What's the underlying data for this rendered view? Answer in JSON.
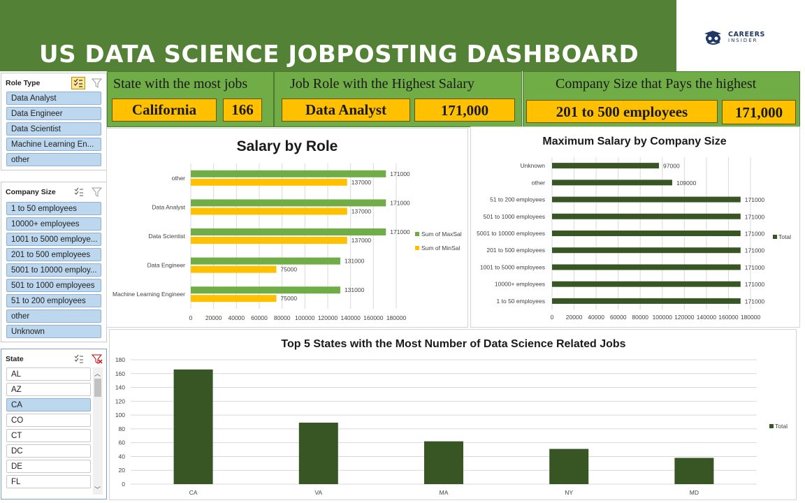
{
  "header": {
    "title": "US DATA SCIENCE JOBPOSTING DASHBOARD",
    "logo_line1": "CAREERS",
    "logo_line2": "INSIDER"
  },
  "colors": {
    "header_green": "#538135",
    "kpi_green": "#70ad47",
    "kpi_gold": "#ffc000",
    "bar_dark": "#375623",
    "bar_light": "#70ad47",
    "slicer_selected": "#bdd7ee"
  },
  "slicers": {
    "role": {
      "title": "Role Type",
      "items": [
        "Data Analyst",
        "Data Engineer",
        "Data Scientist",
        "Machine Learning En...",
        "other"
      ],
      "selected": [
        true,
        true,
        true,
        true,
        true
      ]
    },
    "company_size": {
      "title": "Company Size",
      "items": [
        "1 to 50 employees",
        "10000+  employees",
        "1001 to 5000 employe...",
        "201 to 500 employees",
        "5001 to 10000 employ...",
        "501 to 1000 employees",
        "51 to 200 employees",
        "other",
        "Unknown"
      ],
      "selected": [
        true,
        true,
        true,
        true,
        true,
        true,
        true,
        true,
        true
      ]
    },
    "state": {
      "title": "State",
      "items": [
        "AL",
        "AZ",
        "CA",
        "CO",
        "CT",
        "DC",
        "DE",
        "FL"
      ],
      "selected": [
        false,
        false,
        true,
        false,
        false,
        false,
        false,
        false
      ]
    }
  },
  "kpis": {
    "state": {
      "label": "State with the most jobs",
      "value": "California",
      "count": "166"
    },
    "role": {
      "label": "Job Role with the Highest Salary",
      "value": "Data Analyst",
      "amount": "171,000"
    },
    "size": {
      "label": "Company Size that Pays the highest",
      "value": "201 to 500 employees",
      "amount": "171,000"
    }
  },
  "chart_data": [
    {
      "type": "bar",
      "orientation": "horizontal",
      "title": "Salary by Role",
      "categories": [
        "other",
        "Data Analyst",
        "Data Scientist",
        "Data Engineer",
        "Machine Learning Engineer"
      ],
      "series": [
        {
          "name": "Sum of MaxSal",
          "color": "#70ad47",
          "values": [
            171000,
            171000,
            171000,
            131000,
            131000
          ]
        },
        {
          "name": "Sum of MinSal",
          "color": "#ffc000",
          "values": [
            137000,
            137000,
            137000,
            75000,
            75000
          ]
        }
      ],
      "xticks": [
        "0",
        "20000",
        "40000",
        "60000",
        "80000",
        "100000",
        "120000",
        "140000",
        "160000",
        "180000"
      ],
      "xlim": [
        0,
        180000
      ],
      "legend": "right",
      "grid": true
    },
    {
      "type": "bar",
      "orientation": "horizontal",
      "title": "Maximum Salary by Company Size",
      "categories": [
        "Unknown",
        "other",
        "51 to 200 employees",
        "501 to 1000 employees",
        "5001 to 10000 employees",
        "201 to 500 employees",
        "1001 to 5000 employees",
        "10000+  employees",
        "1 to 50 employees"
      ],
      "series": [
        {
          "name": "Total",
          "color": "#375623",
          "values": [
            97000,
            109000,
            171000,
            171000,
            171000,
            171000,
            171000,
            171000,
            171000
          ]
        }
      ],
      "xticks": [
        "0",
        "20000",
        "40000",
        "60000",
        "80000",
        "100000",
        "120000",
        "140000",
        "160000",
        "180000"
      ],
      "xlim": [
        0,
        180000
      ],
      "legend": "right",
      "grid": true
    },
    {
      "type": "bar",
      "orientation": "vertical",
      "title": "Top 5 States with the Most Number of Data Science Related  Jobs",
      "categories": [
        "CA",
        "VA",
        "MA",
        "NY",
        "MD"
      ],
      "series": [
        {
          "name": "Total",
          "color": "#375623",
          "values": [
            166,
            89,
            62,
            51,
            38
          ]
        }
      ],
      "yticks": [
        "0",
        "20",
        "40",
        "60",
        "80",
        "100",
        "120",
        "140",
        "160",
        "180"
      ],
      "ylim": [
        0,
        180
      ],
      "legend": "right",
      "grid": true
    }
  ]
}
